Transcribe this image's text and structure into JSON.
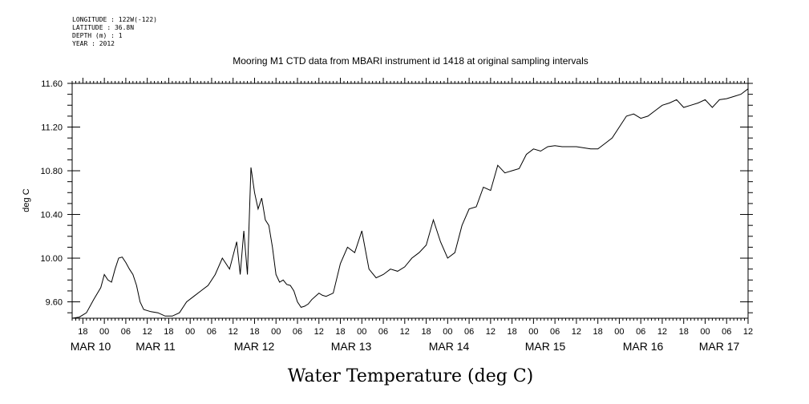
{
  "metadata": {
    "longitude": "LONGITUDE : 122W(-122)",
    "latitude": "LATITUDE : 36.8N",
    "depth": "DEPTH (m) : 1",
    "year": "YEAR : 2012"
  },
  "chart_data": {
    "type": "line",
    "title": "Mooring M1 CTD data from MBARI instrument id 1418 at original sampling intervals",
    "xlabel": "Water Temperature (deg C)",
    "ylabel": "deg C",
    "x_range_hours": [
      -9,
      180
    ],
    "ylim": [
      9.45,
      11.6
    ],
    "y_ticks": [
      "9.60",
      "10.00",
      "10.40",
      "10.80",
      "11.20",
      "11.60"
    ],
    "x_hour_labels": [
      "18",
      "00",
      "06",
      "12",
      "18",
      "00",
      "06",
      "12",
      "18",
      "00",
      "06",
      "12",
      "18",
      "00",
      "06",
      "12",
      "18",
      "00",
      "06",
      "12",
      "18",
      "00",
      "06",
      "12",
      "18",
      "00",
      "06",
      "12",
      "18",
      "00",
      "06",
      "12"
    ],
    "x_day_labels": [
      "MAR 10",
      "MAR 11",
      "MAR 12",
      "MAR 13",
      "MAR 14",
      "MAR 15",
      "MAR 16",
      "MAR 17"
    ],
    "grid": false,
    "series": [
      {
        "x": [
          -9,
          -7,
          -5,
          -3,
          -1,
          0,
          1,
          2,
          3,
          4,
          5,
          6,
          7,
          8,
          9,
          10,
          11,
          13,
          15,
          17,
          19,
          21,
          23,
          25,
          27,
          29,
          31,
          33,
          35,
          37,
          38,
          39,
          40,
          41,
          42,
          43,
          44,
          45,
          46,
          47,
          48,
          49,
          50,
          51,
          52,
          53,
          54,
          55,
          56,
          57,
          58,
          59,
          60,
          61,
          62,
          64,
          66,
          68,
          70,
          72,
          74,
          76,
          78,
          80,
          82,
          84,
          86,
          88,
          90,
          92,
          94,
          96,
          98,
          100,
          102,
          104,
          106,
          108,
          110,
          112,
          114,
          116,
          118,
          120,
          122,
          124,
          126,
          128,
          130,
          132,
          134,
          136,
          138,
          140,
          142,
          144,
          146,
          148,
          150,
          152,
          154,
          156,
          158,
          160,
          162,
          164,
          166,
          168,
          170,
          172,
          174,
          176,
          178,
          180
        ],
        "y": [
          9.45,
          9.46,
          9.5,
          9.62,
          9.73,
          9.85,
          9.8,
          9.78,
          9.9,
          10.0,
          10.01,
          9.96,
          9.9,
          9.85,
          9.75,
          9.6,
          9.53,
          9.51,
          9.5,
          9.47,
          9.47,
          9.5,
          9.6,
          9.65,
          9.7,
          9.75,
          9.85,
          10.0,
          9.9,
          10.15,
          9.85,
          10.25,
          9.85,
          10.83,
          10.6,
          10.45,
          10.55,
          10.35,
          10.3,
          10.1,
          9.85,
          9.78,
          9.8,
          9.76,
          9.75,
          9.7,
          9.6,
          9.55,
          9.56,
          9.58,
          9.62,
          9.65,
          9.68,
          9.66,
          9.65,
          9.68,
          9.95,
          10.1,
          10.05,
          10.25,
          9.9,
          9.82,
          9.85,
          9.9,
          9.88,
          9.92,
          10.0,
          10.05,
          10.12,
          10.35,
          10.15,
          10.0,
          10.05,
          10.3,
          10.45,
          10.47,
          10.65,
          10.62,
          10.85,
          10.78,
          10.8,
          10.82,
          10.95,
          11.0,
          10.98,
          11.02,
          11.03,
          11.02,
          11.02,
          11.02,
          11.01,
          11.0,
          11.0,
          11.05,
          11.1,
          11.2,
          11.3,
          11.32,
          11.28,
          11.3,
          11.35,
          11.4,
          11.42,
          11.45,
          11.38,
          11.4,
          11.42,
          11.45,
          11.38,
          11.45,
          11.46,
          11.48,
          11.5,
          11.55
        ]
      }
    ]
  }
}
